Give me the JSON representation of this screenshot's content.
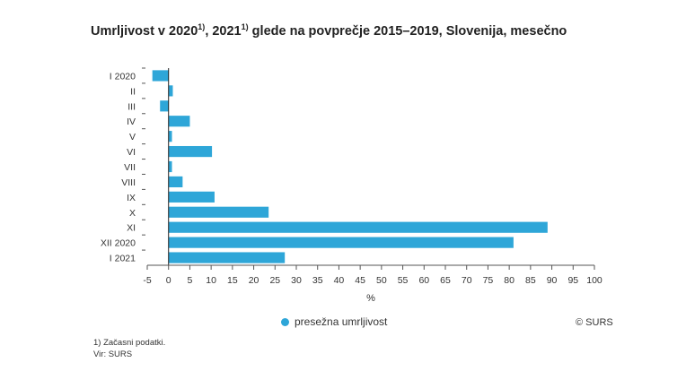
{
  "chart_data": {
    "type": "bar",
    "orientation": "horizontal",
    "title": "Umrljivost v 2020",
    "title_sup1": "1)",
    "title_mid": ", 2021",
    "title_sup2": "1)",
    "title_rest": " glede na povprečje 2015–2019, Slovenija, mesečno",
    "categories": [
      "I 2020",
      "II",
      "III",
      "IV",
      "V",
      "VI",
      "VII",
      "VIII",
      "IX",
      "X",
      "XI",
      "XII 2020",
      "I 2021"
    ],
    "series": [
      {
        "name": "presežna umrljivost",
        "color": "#2ea6d8",
        "values": [
          -3.8,
          1.0,
          -2.0,
          5.0,
          0.8,
          10.2,
          0.8,
          3.3,
          10.8,
          23.5,
          89.0,
          81.0,
          27.3
        ]
      }
    ],
    "xlim": [
      -5,
      100
    ],
    "xticks": [
      -5,
      0,
      5,
      10,
      15,
      20,
      25,
      30,
      35,
      40,
      45,
      50,
      55,
      60,
      65,
      70,
      75,
      80,
      85,
      90,
      95,
      100
    ],
    "xlabel": "%",
    "ylabel": "",
    "grid": false,
    "legend": "bottom-center"
  },
  "credit": "© SURS",
  "footnote": "1) Začasni podatki.",
  "source": "Vir: SURS",
  "colors": {
    "bar": "#2ea6d8",
    "axis": "#555555"
  }
}
